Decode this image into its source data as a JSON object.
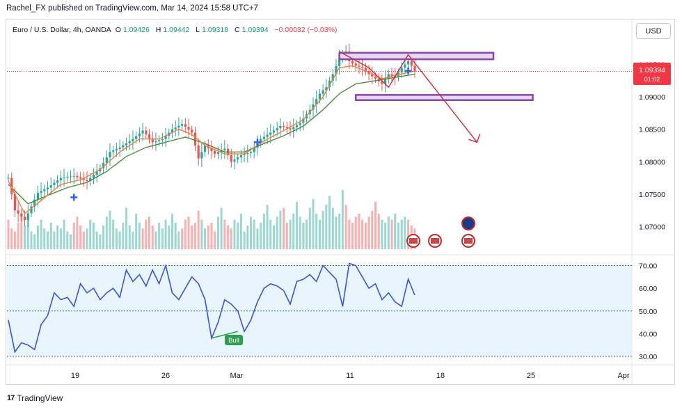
{
  "header": {
    "published": "Rachel_FX published on TradingView.com, Mar 14, 2024 15:58 UTC+7"
  },
  "legend": {
    "symbol": "Euro / U.S. Dollar, 4h, OANDA",
    "open_label": "O",
    "open": "1.09426",
    "high_label": "H",
    "high": "1.09442",
    "low_label": "L",
    "low": "1.09318",
    "close_label": "C",
    "close": "1.09394",
    "change": "−0.00032 (−0.03%)"
  },
  "currency_button": "USD",
  "price_tag": {
    "price": "1.09394",
    "countdown": "01:02"
  },
  "rsi_signal_label": "Bull",
  "footer": {
    "logo_mark": "17",
    "brand": "TradingView"
  },
  "colors": {
    "up": "#26a69a",
    "down": "#ef5350",
    "ma_fast": "#f57c3c",
    "ma_slow": "#4c8c3a",
    "rsi": "#3f51d8",
    "zone": "#8e44ad",
    "arrow": "#d12a3a",
    "price_tag": "#f23645"
  },
  "chart_data": [
    {
      "type": "candlestick",
      "symbol": "Euro / U.S. Dollar",
      "timeframe": "4h",
      "x_ticks": [
        "19",
        "26",
        "Mar",
        "11",
        "18",
        "25",
        "Apr"
      ],
      "y_ticks": [
        "1.09500",
        "1.09000",
        "1.08500",
        "1.08000",
        "1.07500",
        "1.07000"
      ],
      "ylim": [
        1.0665,
        1.0985
      ],
      "last_price": 1.09394,
      "price_path": [
        [
          0,
          1.0775
        ],
        [
          2,
          1.0725
        ],
        [
          5,
          1.071
        ],
        [
          9,
          1.0752
        ],
        [
          12,
          1.076
        ],
        [
          16,
          1.0775
        ],
        [
          20,
          1.0778
        ],
        [
          24,
          1.077
        ],
        [
          28,
          1.079
        ],
        [
          31,
          1.0815
        ],
        [
          34,
          1.0822
        ],
        [
          38,
          1.0835
        ],
        [
          41,
          1.0848
        ],
        [
          44,
          1.083
        ],
        [
          47,
          1.0835
        ],
        [
          50,
          1.085
        ],
        [
          53,
          1.0858
        ],
        [
          56,
          1.0845
        ],
        [
          58,
          1.0805
        ],
        [
          60,
          1.0825
        ],
        [
          63,
          1.0812
        ],
        [
          66,
          1.082
        ],
        [
          68,
          1.08
        ],
        [
          71,
          1.081
        ],
        [
          74,
          1.0815
        ],
        [
          77,
          1.0835
        ],
        [
          80,
          1.0845
        ],
        [
          83,
          1.0855
        ],
        [
          86,
          1.085
        ],
        [
          89,
          1.086
        ],
        [
          92,
          1.088
        ],
        [
          95,
          1.0905
        ],
        [
          97,
          1.0915
        ],
        [
          99,
          1.0935
        ],
        [
          101,
          1.096
        ],
        [
          103,
          1.097
        ],
        [
          104,
          1.0955
        ],
        [
          106,
          1.0948
        ],
        [
          108,
          1.0945
        ],
        [
          110,
          1.0935
        ],
        [
          112,
          1.0928
        ],
        [
          114,
          1.092
        ],
        [
          116,
          1.0935
        ],
        [
          118,
          1.093
        ],
        [
          120,
          1.0945
        ],
        [
          122,
          1.0955
        ],
        [
          123,
          1.0948
        ],
        [
          124,
          1.0939
        ]
      ],
      "ma_fast_path": [
        [
          0,
          1.077
        ],
        [
          5,
          1.072
        ],
        [
          10,
          1.074
        ],
        [
          16,
          1.0765
        ],
        [
          22,
          1.0772
        ],
        [
          28,
          1.0788
        ],
        [
          34,
          1.0815
        ],
        [
          40,
          1.0835
        ],
        [
          46,
          1.0835
        ],
        [
          52,
          1.085
        ],
        [
          56,
          1.0842
        ],
        [
          60,
          1.0825
        ],
        [
          66,
          1.0812
        ],
        [
          72,
          1.0812
        ],
        [
          78,
          1.0832
        ],
        [
          84,
          1.0848
        ],
        [
          90,
          1.0865
        ],
        [
          96,
          1.09
        ],
        [
          101,
          1.0945
        ],
        [
          105,
          1.0948
        ],
        [
          110,
          1.0938
        ],
        [
          114,
          1.0928
        ],
        [
          118,
          1.0933
        ],
        [
          124,
          1.094
        ]
      ],
      "ma_slow_path": [
        [
          0,
          1.0765
        ],
        [
          6,
          1.0735
        ],
        [
          12,
          1.0748
        ],
        [
          18,
          1.076
        ],
        [
          24,
          1.0768
        ],
        [
          30,
          1.0785
        ],
        [
          36,
          1.0808
        ],
        [
          42,
          1.0822
        ],
        [
          48,
          1.083
        ],
        [
          54,
          1.0838
        ],
        [
          60,
          1.0828
        ],
        [
          66,
          1.0815
        ],
        [
          72,
          1.0815
        ],
        [
          78,
          1.0828
        ],
        [
          84,
          1.084
        ],
        [
          90,
          1.0855
        ],
        [
          96,
          1.088
        ],
        [
          101,
          1.0905
        ],
        [
          106,
          1.092
        ],
        [
          112,
          1.0925
        ],
        [
          118,
          1.093
        ],
        [
          124,
          1.0935
        ]
      ],
      "zones": [
        {
          "y_top": 1.0968,
          "y_bottom": 1.0958,
          "x_start": 101,
          "x_end": 148
        },
        {
          "y_top": 1.0903,
          "y_bottom": 1.0895,
          "x_start": 106,
          "x_end": 160
        }
      ],
      "projection_path": [
        [
          101,
          1.097
        ],
        [
          110,
          1.0945
        ],
        [
          116,
          1.0915
        ],
        [
          122,
          1.0965
        ],
        [
          143,
          1.083
        ]
      ],
      "volume_relative": [
        0.5,
        0.35,
        0.3,
        0.45,
        0.6,
        0.4,
        0.55,
        0.3,
        0.25,
        0.4,
        0.5,
        0.35,
        0.3,
        0.45,
        0.3,
        0.4,
        0.35,
        0.5,
        0.3,
        0.25,
        0.45,
        0.55,
        0.4,
        0.3,
        0.35,
        0.5,
        0.45,
        0.3,
        0.25,
        0.4,
        0.55,
        0.65,
        0.5,
        0.35,
        0.3,
        0.45,
        0.7,
        0.4,
        0.3,
        0.6,
        0.45,
        0.35,
        0.5,
        0.55,
        0.4,
        0.3,
        0.45,
        0.35,
        0.5,
        0.4,
        0.6,
        0.45,
        0.3,
        0.35,
        0.5,
        0.55,
        0.4,
        0.45,
        0.65,
        0.5,
        0.35,
        0.4,
        0.45,
        0.3,
        0.55,
        0.7,
        0.5,
        0.4,
        0.35,
        0.5,
        0.45,
        0.6,
        0.3,
        0.4,
        0.55,
        0.5,
        0.35,
        0.45,
        0.6,
        0.75,
        0.5,
        0.4,
        0.55,
        0.65,
        0.7,
        0.45,
        0.5,
        0.6,
        0.8,
        0.55,
        0.45,
        0.5,
        0.7,
        0.85,
        0.6,
        0.5,
        0.65,
        0.75,
        0.9,
        0.7,
        0.55,
        0.6,
        1.0,
        0.75,
        0.5,
        0.45,
        0.55,
        0.6,
        0.5,
        0.45,
        0.55,
        0.65,
        0.8,
        0.6,
        0.5,
        0.45,
        0.55,
        0.5,
        0.6,
        0.45,
        0.5,
        0.55,
        0.5,
        0.4,
        0.35
      ]
    },
    {
      "type": "line",
      "name": "RSI",
      "y_ticks": [
        "70.00",
        "60.00",
        "50.00",
        "40.00",
        "30.00"
      ],
      "ylim": [
        30,
        72
      ],
      "band": [
        30,
        70
      ],
      "x": [
        0,
        2,
        4,
        6,
        8,
        10,
        12,
        14,
        16,
        18,
        20,
        22,
        24,
        26,
        28,
        30,
        32,
        34,
        36,
        38,
        40,
        42,
        44,
        46,
        48,
        50,
        52,
        54,
        56,
        58,
        60,
        62,
        64,
        66,
        68,
        70,
        72,
        74,
        76,
        78,
        80,
        82,
        84,
        86,
        88,
        90,
        92,
        94,
        96,
        98,
        100,
        102,
        104,
        106,
        108,
        110,
        112,
        114,
        116,
        118,
        120,
        122,
        124
      ],
      "values": [
        46,
        32,
        36,
        35,
        33,
        44,
        48,
        58,
        55,
        56,
        52,
        62,
        58,
        60,
        55,
        58,
        60,
        56,
        68,
        63,
        66,
        61,
        68,
        62,
        70,
        58,
        55,
        60,
        65,
        62,
        55,
        38,
        45,
        55,
        53,
        50,
        41,
        46,
        54,
        60,
        62,
        61,
        59,
        53,
        63,
        64,
        66,
        63,
        70,
        67,
        64,
        52,
        71,
        70,
        65,
        60,
        62,
        55,
        58,
        54,
        52,
        64,
        57
      ]
    }
  ]
}
